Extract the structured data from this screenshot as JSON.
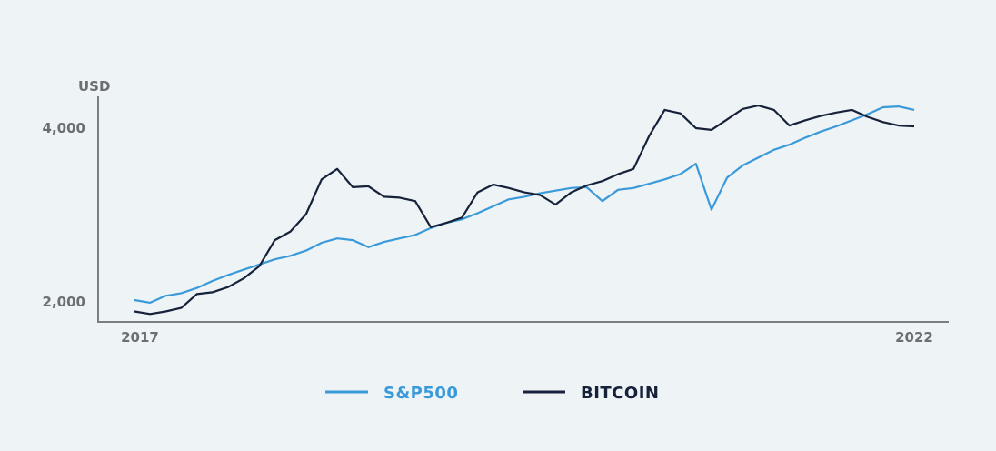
{
  "chart_data": {
    "type": "line",
    "ylabel": "USD",
    "y_ticks": [
      "4,000",
      "2,000"
    ],
    "x_ticks": [
      "2017",
      "2022"
    ],
    "grid": false,
    "legend_position": "bottom-center",
    "colors": {
      "sp500": "#3a9ad9",
      "bitcoin": "#16213a",
      "axis": "#7a7d82",
      "background": "#eef3f6"
    },
    "x": [
      2017.0,
      2017.1,
      2017.2,
      2017.3,
      2017.4,
      2017.5,
      2017.6,
      2017.7,
      2017.8,
      2017.9,
      2018.0,
      2018.1,
      2018.2,
      2018.3,
      2018.4,
      2018.5,
      2018.6,
      2018.7,
      2018.8,
      2018.9,
      2019.0,
      2019.1,
      2019.2,
      2019.3,
      2019.4,
      2019.5,
      2019.6,
      2019.7,
      2019.8,
      2019.9,
      2020.0,
      2020.1,
      2020.2,
      2020.3,
      2020.4,
      2020.5,
      2020.6,
      2020.7,
      2020.8,
      2020.9,
      2021.0,
      2021.1,
      2021.2,
      2021.3,
      2021.4,
      2021.5,
      2021.6,
      2021.7,
      2021.8,
      2021.9,
      2022.0
    ],
    "series": [
      {
        "name": "S&P500",
        "values": [
          2010,
          1980,
          2060,
          2090,
          2150,
          2230,
          2300,
          2360,
          2420,
          2480,
          2520,
          2580,
          2670,
          2720,
          2700,
          2620,
          2680,
          2720,
          2760,
          2840,
          2900,
          2940,
          3010,
          3090,
          3170,
          3200,
          3240,
          3270,
          3300,
          3310,
          3150,
          3280,
          3300,
          3350,
          3400,
          3460,
          3580,
          3050,
          3420,
          3560,
          3650,
          3740,
          3800,
          3880,
          3950,
          4010,
          4080,
          4150,
          4230,
          4240,
          4200
        ]
      },
      {
        "name": "BITCOIN",
        "values": [
          1880,
          1850,
          1880,
          1920,
          2080,
          2100,
          2160,
          2260,
          2400,
          2700,
          2800,
          3000,
          3400,
          3520,
          3310,
          3320,
          3200,
          3190,
          3150,
          2850,
          2900,
          2960,
          3250,
          3340,
          3300,
          3250,
          3220,
          3110,
          3250,
          3330,
          3380,
          3460,
          3520,
          3900,
          4200,
          4160,
          3990,
          3970,
          4090,
          4210,
          4250,
          4200,
          4020,
          4080,
          4130,
          4170,
          4200,
          4120,
          4060,
          4020,
          4010
        ]
      }
    ]
  }
}
